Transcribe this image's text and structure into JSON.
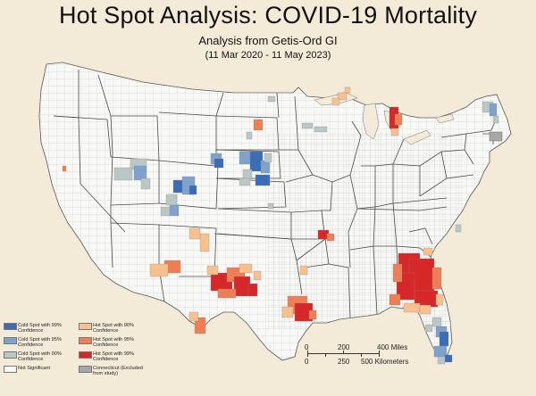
{
  "header": {
    "title": "Hot Spot Analysis: COVID-19 Mortality",
    "subtitle": "Analysis from Getis-Ord GI",
    "date_range": "(11 Mar 2020 - 11 May 2023)"
  },
  "colors": {
    "background": "#f3ead8",
    "land": "#f8f8f6",
    "borders": "#9a9a9a",
    "state_borders": "#4a4a4a",
    "cold_99": "#3b6db5",
    "cold_95": "#7fa2cc",
    "cold_90": "#b9c8c6",
    "hot_90": "#f7c08e",
    "hot_95": "#ee7f55",
    "hot_99": "#d62828",
    "not_significant": "#f8f8f6",
    "excluded": "#a8a8a8"
  },
  "legend": [
    {
      "key": "cold_99",
      "label": "Cold Spot with 99% Confidence"
    },
    {
      "key": "cold_95",
      "label": "Cold Spot with 95% Confidence"
    },
    {
      "key": "cold_90",
      "label": "Cold Spot with 90% Confidence"
    },
    {
      "key": "not_significant",
      "label": "Not Significant"
    },
    {
      "key": "hot_90",
      "label": "Hot Spot with 90% Confidence"
    },
    {
      "key": "hot_95",
      "label": "Hot Spot with 95% Confidence"
    },
    {
      "key": "hot_99",
      "label": "Hot Spot with 99% Confidence"
    },
    {
      "key": "excluded",
      "label": "Connecticut (Excluded from study)"
    }
  ],
  "scale_bar": {
    "miles_labels": [
      "0",
      "200",
      "400 Miles"
    ],
    "km_labels": [
      "0",
      "250",
      "500 Kilometers"
    ]
  }
}
